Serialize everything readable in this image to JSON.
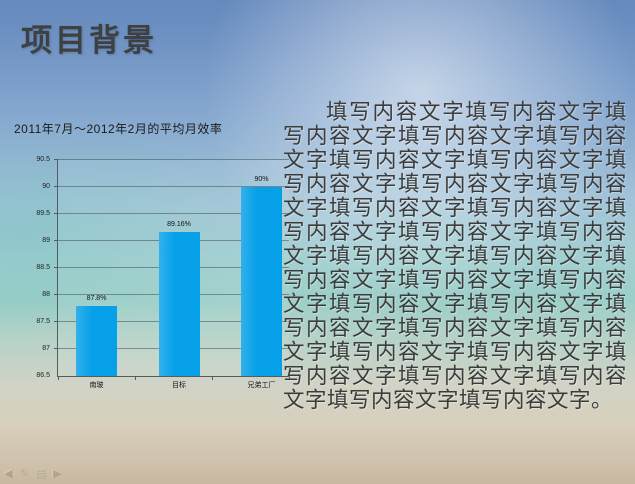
{
  "slide": {
    "title": "项目背景",
    "body_text": "填写内容文字填写内容文字填写内容文字填写内容文字填写内容文字填写内容文字填写内容文字填写内容文字填写内容文字填写内容文字填写内容文字填写内容文字填写内容文字填写内容文字填写内容文字填写内容文字填写内容文字填写内容文字填写内容文字填写内容文字填写内容文字填写内容文字填写内容文字填写内容文字填写内容文字填写内容文字填写内容文字填写内容文字填写内容文字填写内容文字填写内容文字填写内容文字。"
  },
  "chart_data": {
    "type": "bar",
    "title": "2011年7月～2012年2月的平均月效率",
    "categories": [
      "南玻",
      "目标",
      "兄弟工厂"
    ],
    "values": [
      87.8,
      89.16,
      90
    ],
    "value_labels": [
      "87.8%",
      "89.16%",
      "90%"
    ],
    "ylim": [
      86.5,
      90.5
    ],
    "ytick_step": 0.5,
    "ytick_labels": [
      "86.5",
      "87",
      "87.5",
      "88",
      "88.5",
      "89",
      "89.5",
      "90",
      "90.5"
    ],
    "grid": true,
    "legend": false,
    "bar_color": "#05a0e8"
  },
  "toolbar": {
    "prev_glyph": "◀",
    "pen_glyph": "✎",
    "menu_glyph": "▤",
    "next_glyph": "▶"
  },
  "colors": {
    "bar": "#05a0e8",
    "title_text": "#3e4143",
    "body_text": "#3c3c3c",
    "sky_top": "#6589bd",
    "teal_mid": "#9ccfc9",
    "sand_bottom": "#c6b7a1"
  }
}
